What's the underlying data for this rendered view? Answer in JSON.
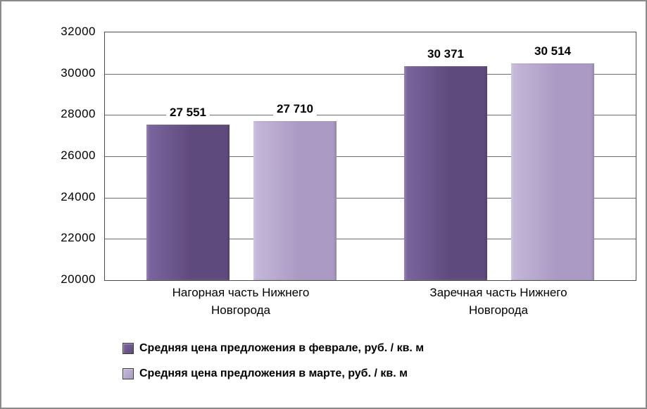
{
  "chart_data": {
    "type": "bar",
    "categories": [
      "Нагорная часть Нижнего Новгорода",
      "Заречная часть Нижнего Новгорода"
    ],
    "series": [
      {
        "name": "Средняя цена предложения в феврале, руб. / кв. м",
        "values": [
          27551,
          30371
        ],
        "color": "#5f4a7d",
        "color_light": "#7c66a0"
      },
      {
        "name": "Средняя цена предложения в марте, руб. / кв. м",
        "values": [
          27710,
          30514
        ],
        "color": "#a success",
        "color_light": "#c6b9d9"
      }
    ],
    "value_labels": [
      [
        "27 551",
        "30 371"
      ],
      [
        "27 710",
        "30 514"
      ]
    ],
    "title": "",
    "xlabel": "",
    "ylabel": "",
    "ylim": [
      20000,
      32000
    ],
    "ytick_step": 2000,
    "yticks": [
      "32000",
      "30000",
      "28000",
      "26000",
      "24000",
      "22000",
      "20000"
    ],
    "grid": true,
    "legend_position": "bottom-left"
  }
}
